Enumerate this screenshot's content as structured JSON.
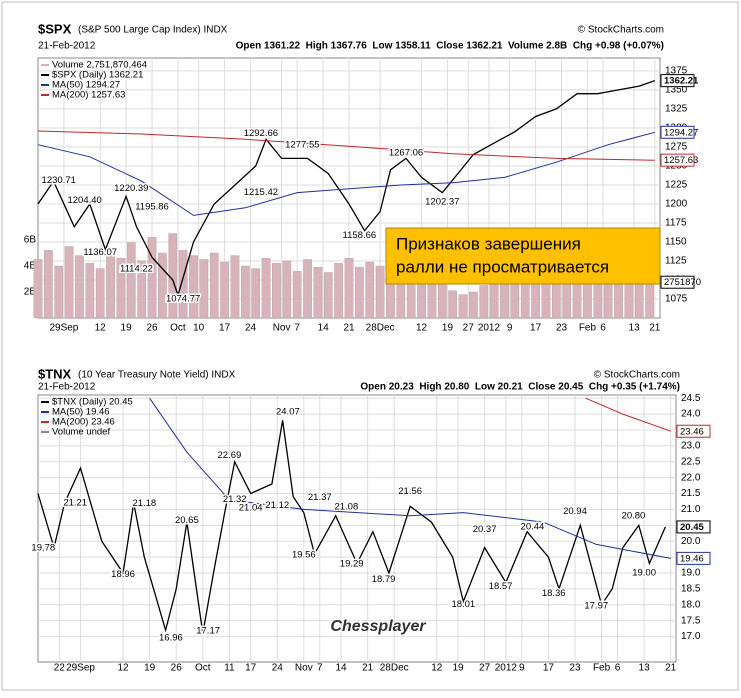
{
  "chart_data": [
    {
      "type": "line",
      "title": "$SPX",
      "subtitle": "(S&P 500 Large Cap Index) INDX",
      "source": "© StockCharts.com",
      "date": "21-Feb-2012",
      "quote": "Open 1361.22  High 1367.76  Low 1358.11  Close 1362.21  Volume 2.8B  Chg +0.98 (+0.07%)",
      "xlim": [
        0,
        120
      ],
      "xticks": [
        {
          "value": 5,
          "label": "29Sep"
        },
        {
          "value": 12,
          "label": "12"
        },
        {
          "value": 17,
          "label": "19"
        },
        {
          "value": 22,
          "label": "26"
        },
        {
          "value": 27,
          "label": "Oct"
        },
        {
          "value": 31,
          "label": "10"
        },
        {
          "value": 36,
          "label": "17"
        },
        {
          "value": 41,
          "label": "24"
        },
        {
          "value": 47,
          "label": "Nov"
        },
        {
          "value": 50,
          "label": "7"
        },
        {
          "value": 55,
          "label": "14"
        },
        {
          "value": 60,
          "label": "21"
        },
        {
          "value": 66,
          "label": "28Dec"
        },
        {
          "value": 74,
          "label": "12"
        },
        {
          "value": 79,
          "label": "19"
        },
        {
          "value": 83,
          "label": "27"
        },
        {
          "value": 87,
          "label": "2012"
        },
        {
          "value": 91,
          "label": "9"
        },
        {
          "value": 96,
          "label": "17"
        },
        {
          "value": 101,
          "label": "23"
        },
        {
          "value": 106,
          "label": "Feb"
        },
        {
          "value": 109,
          "label": "6"
        },
        {
          "value": 115,
          "label": "13"
        },
        {
          "value": 119,
          "label": "21"
        }
      ],
      "ylim": [
        1050,
        1392
      ],
      "yticks": [
        1075,
        1100,
        1125,
        1150,
        1175,
        1200,
        1225,
        1250,
        1275,
        1300,
        1325,
        1350,
        1375
      ],
      "volume_ylim": [
        0,
        20
      ],
      "volume_ticks": [
        {
          "value": 2,
          "label": "2B"
        },
        {
          "value": 4,
          "label": "4B"
        },
        {
          "value": 6,
          "label": "6B"
        }
      ],
      "grid": true,
      "series": [
        {
          "name": "Volume 2,751,870,464",
          "color": "#d8b4ba",
          "axis": "volume",
          "x": [
            0,
            2,
            4,
            6,
            8,
            10,
            12,
            14,
            16,
            18,
            20,
            22,
            24,
            26,
            28,
            30,
            32,
            34,
            36,
            38,
            40,
            42,
            44,
            46,
            48,
            50,
            52,
            54,
            56,
            58,
            60,
            62,
            64,
            66,
            68,
            70,
            72,
            74,
            76,
            78,
            80,
            82,
            84,
            86,
            88,
            90,
            92,
            94,
            96,
            98,
            100,
            102,
            104,
            106,
            108,
            110,
            112,
            114,
            116,
            118
          ],
          "values": [
            4.5,
            5.2,
            4.0,
            5.5,
            4.8,
            4.2,
            3.8,
            5.0,
            4.6,
            5.8,
            4.4,
            6.2,
            5.0,
            6.5,
            5.2,
            4.8,
            4.5,
            5.0,
            4.3,
            4.8,
            4.0,
            3.8,
            4.6,
            4.2,
            4.4,
            3.6,
            4.5,
            3.9,
            3.5,
            4.2,
            4.6,
            3.9,
            4.3,
            4.0,
            3.6,
            3.8,
            3.5,
            3.3,
            3.9,
            3.2,
            2.1,
            1.8,
            2.0,
            2.5,
            3.6,
            3.8,
            3.4,
            3.9,
            3.6,
            3.4,
            3.7,
            3.9,
            3.5,
            3.6,
            3.8,
            3.4,
            3.6,
            3.3,
            3.5,
            3.7
          ]
        },
        {
          "name": "$SPX (Daily) 1362.21",
          "color": "#000000",
          "x": [
            0,
            3,
            7,
            10,
            13,
            17,
            19,
            22,
            26,
            27,
            30,
            34,
            38,
            42,
            44,
            47,
            52,
            56,
            60,
            63,
            66,
            68,
            71,
            74,
            78,
            81,
            84,
            88,
            92,
            96,
            100,
            104,
            108,
            112,
            116,
            119
          ],
          "values": [
            1200,
            1230,
            1170,
            1200,
            1140,
            1210,
            1170,
            1130,
            1100,
            1080,
            1150,
            1200,
            1225,
            1250,
            1285,
            1260,
            1260,
            1240,
            1200,
            1165,
            1190,
            1245,
            1260,
            1235,
            1215,
            1240,
            1265,
            1280,
            1295,
            1315,
            1325,
            1345,
            1345,
            1350,
            1355,
            1362.21
          ]
        },
        {
          "name": "MA(50) 1294.27",
          "color": "#1f2f9a",
          "x": [
            0,
            10,
            20,
            30,
            40,
            50,
            60,
            70,
            80,
            90,
            100,
            110,
            119
          ],
          "values": [
            1278,
            1262,
            1230,
            1185,
            1195,
            1215,
            1220,
            1225,
            1228,
            1235,
            1255,
            1278,
            1294.27
          ]
        },
        {
          "name": "MA(200) 1257.63",
          "color": "#c0282c",
          "x": [
            0,
            20,
            40,
            60,
            80,
            100,
            119
          ],
          "values": [
            1296,
            1292,
            1285,
            1276,
            1266,
            1260,
            1257.63
          ]
        }
      ],
      "tags": [
        {
          "value": 1362.21,
          "color": "#000000"
        },
        {
          "value": 1294.27,
          "color": "#1f2f9a"
        },
        {
          "value": 1257.63,
          "color": "#c0282c"
        },
        {
          "value": 2.75187,
          "label": "2751870",
          "axis": "volume",
          "color": "#000000"
        }
      ],
      "annotations": [
        {
          "x": 4,
          "value": 1230.71
        },
        {
          "x": 9,
          "value": 1204.4,
          "label": "1204.40"
        },
        {
          "x": 12,
          "value": 1136.07
        },
        {
          "x": 18,
          "value": 1220.39
        },
        {
          "x": 22,
          "value": 1195.86
        },
        {
          "x": 19,
          "value": 1114.22
        },
        {
          "x": 28,
          "value": 1074.77
        },
        {
          "x": 43,
          "value": 1292.66
        },
        {
          "x": 43,
          "value": 1215.42
        },
        {
          "x": 51,
          "value": 1277.55
        },
        {
          "x": 62,
          "value": 1158.66
        },
        {
          "x": 71,
          "value": 1267.06
        },
        {
          "x": 78,
          "value": 1202.37
        }
      ],
      "note": [
        "Признаков завершения",
        "ралли не просматривается"
      ]
    },
    {
      "type": "line",
      "title": "$TNX",
      "subtitle": "(10 Year Treasury Note Yield) INDX",
      "source": "© StockCharts.com",
      "date": "21-Feb-2012",
      "quote": "Open 20.23  High 20.80  Low 20.21  Close 20.45  Chg +0.35 (+1.74%)",
      "xlim": [
        0,
        120
      ],
      "xticks": [
        {
          "value": 4,
          "label": "22"
        },
        {
          "value": 8,
          "label": "29Sep"
        },
        {
          "value": 16,
          "label": "12"
        },
        {
          "value": 21,
          "label": "19"
        },
        {
          "value": 26,
          "label": "26"
        },
        {
          "value": 31,
          "label": "Oct"
        },
        {
          "value": 36,
          "label": "11"
        },
        {
          "value": 40,
          "label": "17"
        },
        {
          "value": 45,
          "label": "24"
        },
        {
          "value": 50,
          "label": "Nov"
        },
        {
          "value": 53,
          "label": "7"
        },
        {
          "value": 57,
          "label": "14"
        },
        {
          "value": 62,
          "label": "21"
        },
        {
          "value": 67,
          "label": "28Dec"
        },
        {
          "value": 75,
          "label": "12"
        },
        {
          "value": 79,
          "label": "19"
        },
        {
          "value": 84,
          "label": "27"
        },
        {
          "value": 88,
          "label": "2012"
        },
        {
          "value": 91,
          "label": "9"
        },
        {
          "value": 96,
          "label": "17"
        },
        {
          "value": 101,
          "label": "23"
        },
        {
          "value": 106,
          "label": "Feb"
        },
        {
          "value": 109,
          "label": "6"
        },
        {
          "value": 114,
          "label": "13"
        },
        {
          "value": 119,
          "label": "21"
        }
      ],
      "ylim": [
        16.2,
        24.6
      ],
      "yticks": [
        {
          "value": 17,
          "label": "17.0"
        },
        17.5,
        {
          "value": 18,
          "label": "18.0"
        },
        18.5,
        {
          "value": 19,
          "label": "19.0"
        },
        19.5,
        {
          "value": 20,
          "label": "20.0"
        },
        20.5,
        {
          "value": 21,
          "label": "21.0"
        },
        21.5,
        {
          "value": 22,
          "label": "22.0"
        },
        22.5,
        {
          "value": 23,
          "label": "23.0"
        },
        23.5,
        {
          "value": 24,
          "label": "24.0"
        },
        24.5
      ],
      "grid": true,
      "series": [
        {
          "name": "$TNX (Daily) 20.45",
          "color": "#000000",
          "x": [
            0,
            3,
            5,
            8,
            12,
            16,
            18,
            20,
            24,
            26,
            28,
            31,
            33,
            35,
            37,
            40,
            44,
            46,
            48,
            50,
            52,
            56,
            60,
            63,
            66,
            70,
            74,
            78,
            80,
            84,
            88,
            92,
            96,
            98,
            102,
            106,
            108,
            110,
            113,
            115,
            118
          ],
          "values": [
            21.5,
            19.8,
            21.2,
            22.3,
            20.0,
            19.0,
            21.2,
            19.5,
            17.2,
            18.5,
            20.6,
            17.1,
            19.0,
            20.8,
            22.5,
            21.5,
            21.8,
            23.8,
            21.4,
            20.9,
            19.6,
            20.8,
            19.3,
            20.3,
            19.0,
            21.1,
            20.6,
            19.5,
            18.1,
            19.8,
            18.7,
            20.3,
            19.5,
            18.5,
            20.5,
            18.0,
            18.5,
            19.8,
            20.5,
            19.3,
            20.45
          ]
        },
        {
          "name": "MA(50) 19.46",
          "color": "#1f2f9a",
          "x": [
            21,
            28,
            36,
            50,
            70,
            80,
            95,
            105,
            119
          ],
          "values": [
            24.5,
            22.8,
            21.3,
            21.0,
            20.8,
            20.9,
            20.6,
            19.9,
            19.46
          ]
        },
        {
          "name": "MA(200) 23.46",
          "color": "#c0282c",
          "x": [
            103,
            110,
            119
          ],
          "values": [
            24.5,
            24.0,
            23.46
          ]
        },
        {
          "name": "Volume undef",
          "color": "#888888",
          "x": [],
          "values": []
        }
      ],
      "tags": [
        {
          "value": 20.45,
          "color": "#000000"
        },
        {
          "value": 19.46,
          "color": "#1f2f9a"
        },
        {
          "value": 23.46,
          "color": "#c0282c"
        }
      ],
      "annotations": [
        {
          "x": 47,
          "value": 24.07
        },
        {
          "x": 36,
          "value": 22.69
        },
        {
          "x": 20,
          "value": 21.18
        },
        {
          "x": 7,
          "value": 21.21
        },
        {
          "x": 28,
          "value": 20.65
        },
        {
          "x": 53,
          "value": 21.37
        },
        {
          "x": 58,
          "value": 21.08
        },
        {
          "x": 70,
          "value": 21.56
        },
        {
          "x": 37,
          "value": 21.32
        },
        {
          "x": 40,
          "value": 21.04
        },
        {
          "x": 45,
          "value": 21.12
        },
        {
          "x": 84,
          "value": 20.37
        },
        {
          "x": 93,
          "value": 20.44
        },
        {
          "x": 101,
          "value": 20.94
        },
        {
          "x": 112,
          "value": 20.8,
          "label": "20.80"
        },
        {
          "x": 1,
          "value": 19.78
        },
        {
          "x": 16,
          "value": 18.96
        },
        {
          "x": 25,
          "value": 16.96
        },
        {
          "x": 32,
          "value": 17.17
        },
        {
          "x": 50,
          "value": 19.56
        },
        {
          "x": 59,
          "value": 19.29
        },
        {
          "x": 65,
          "value": 18.79
        },
        {
          "x": 80,
          "value": 18.01
        },
        {
          "x": 87,
          "value": 18.57
        },
        {
          "x": 97,
          "value": 18.36
        },
        {
          "x": 105,
          "value": 17.97
        },
        {
          "x": 114,
          "value": 19.0,
          "label": "19.00"
        }
      ],
      "watermark": "Chessplayer"
    }
  ]
}
